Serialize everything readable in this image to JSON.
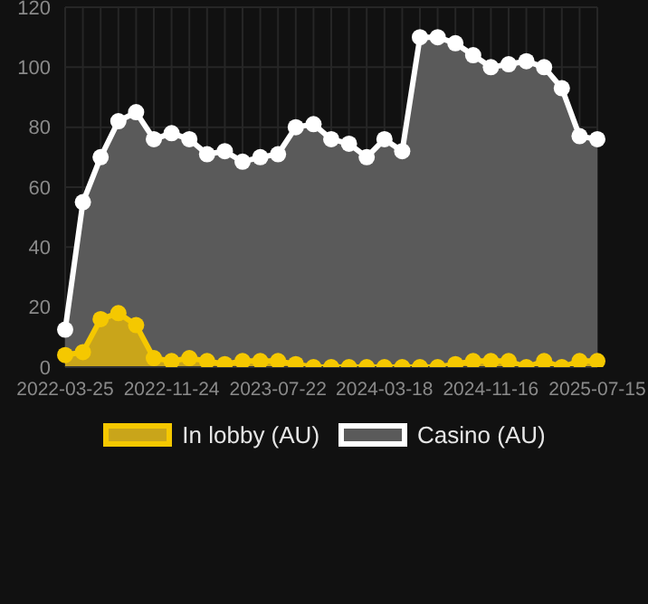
{
  "chart_data": {
    "type": "area",
    "categories": [
      "2022-03-25",
      null,
      null,
      null,
      null,
      null,
      "2022-11-24",
      null,
      null,
      null,
      null,
      null,
      "2023-07-22",
      null,
      null,
      null,
      null,
      null,
      "2024-03-18",
      null,
      null,
      null,
      null,
      null,
      "2024-11-16",
      null,
      null,
      null,
      null,
      null,
      "2025-07-15"
    ],
    "series": [
      {
        "name": "In lobby (AU)",
        "color": "#f5c800",
        "values": [
          4,
          5,
          16,
          18,
          14,
          3,
          2,
          3,
          2,
          1,
          2,
          2,
          2,
          1,
          0,
          0,
          0,
          0,
          0,
          0,
          0,
          0,
          1,
          2,
          2,
          2,
          0,
          2,
          0,
          2,
          2
        ]
      },
      {
        "name": "Casino (AU)",
        "color": "#ffffff",
        "values": [
          12.5,
          55,
          70,
          82,
          85,
          76,
          78,
          76,
          71,
          72,
          68.5,
          70,
          71,
          80,
          81,
          76,
          74.5,
          70,
          76,
          72,
          110,
          110,
          108,
          104,
          100,
          101,
          102,
          100,
          93,
          77,
          76
        ]
      }
    ],
    "ylim": [
      0,
      120
    ],
    "yticks": [
      0,
      20,
      40,
      60,
      80,
      100,
      120
    ],
    "grid": true,
    "legend": "bottom",
    "marker": "circle"
  }
}
